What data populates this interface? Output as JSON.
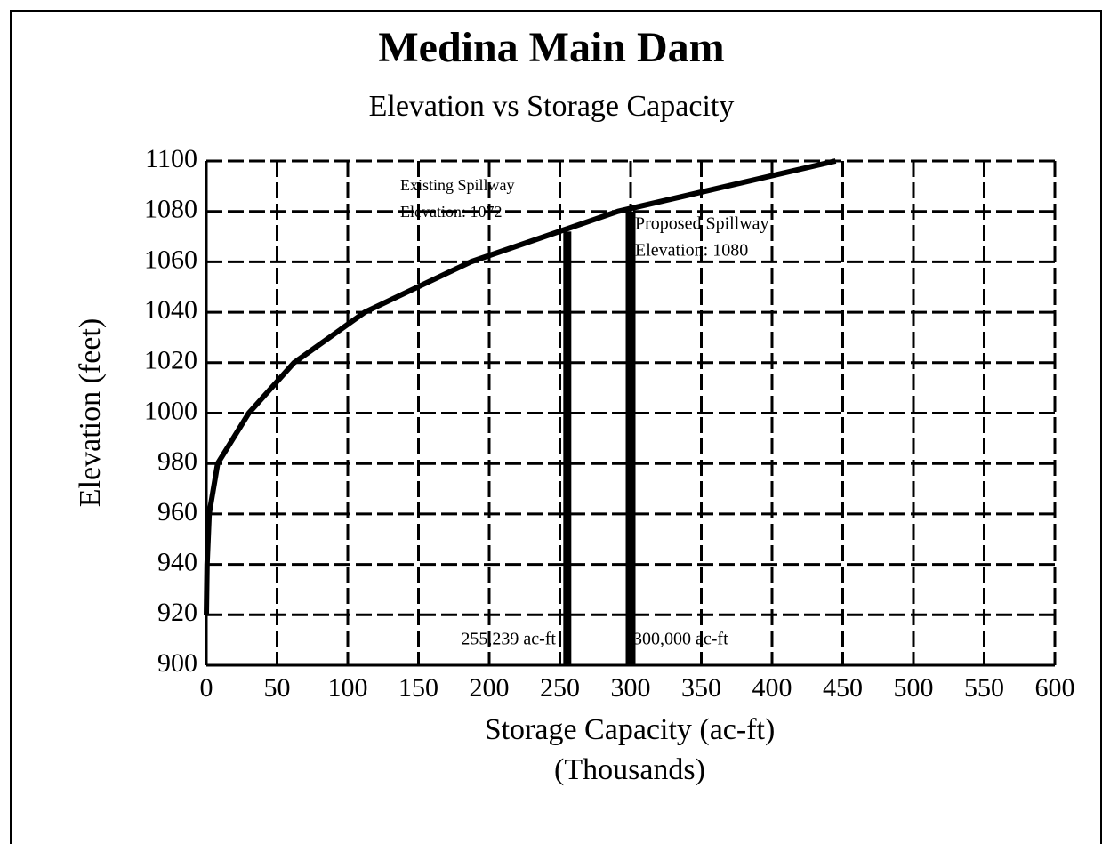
{
  "chart_data": {
    "type": "line",
    "title": "Medina Main Dam",
    "subtitle": "Elevation vs Storage Capacity",
    "xlabel": "Storage Capacity (ac-ft)",
    "xlabel_unit": "(Thousands)",
    "ylabel": "Elevation (feet)",
    "xlim": [
      0,
      600
    ],
    "ylim": [
      900,
      1100
    ],
    "xticks": [
      0,
      50,
      100,
      150,
      200,
      250,
      300,
      350,
      400,
      450,
      500,
      550,
      600
    ],
    "yticks": [
      900,
      920,
      940,
      960,
      980,
      1000,
      1020,
      1040,
      1060,
      1080,
      1100
    ],
    "grid": true,
    "series": [
      {
        "color": "#000000",
        "x": [
          0,
          0.5,
          2,
          8,
          30,
          62,
          112,
          187,
          291,
          445
        ],
        "values": [
          920,
          940,
          960,
          980,
          1000,
          1020,
          1040,
          1060,
          1080,
          1100
        ]
      },
      {
        "color": "#000000",
        "x": [
          255.239,
          255.239
        ],
        "values": [
          900,
          1072
        ]
      },
      {
        "color": "#000000",
        "x": [
          300,
          300
        ],
        "values": [
          900,
          1080
        ]
      }
    ],
    "annotations": [
      {
        "lines": [
          "Existing Spillway",
          "Elevation:  1072"
        ],
        "label": "255,239 ac-ft"
      },
      {
        "lines": [
          "Proposed Spillway",
          "Elevation:  1080"
        ],
        "label": "300,000 ac-ft"
      }
    ]
  }
}
